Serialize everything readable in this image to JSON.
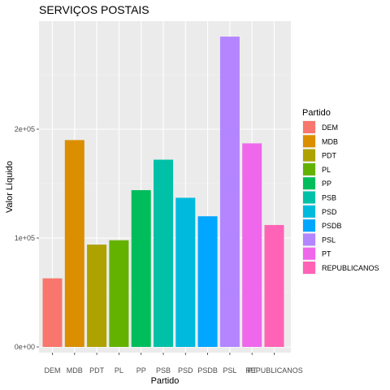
{
  "chart_data": {
    "type": "bar",
    "title": "SERVIÇOS POSTAIS",
    "xlabel": "Partido",
    "ylabel": "Valor Líquido",
    "categories": [
      "DEM",
      "MDB",
      "PDT",
      "PL",
      "PP",
      "PSB",
      "PSD",
      "PSDB",
      "PSL",
      "PT",
      "REPUBLICANOS"
    ],
    "values": [
      63000,
      190000,
      94000,
      98000,
      144000,
      172000,
      137000,
      120000,
      285000,
      187000,
      112000
    ],
    "colors": [
      "#F8766D",
      "#DB8E00",
      "#AEA200",
      "#64B200",
      "#00BD5C",
      "#00C1A7",
      "#00BADE",
      "#00A6FF",
      "#B385FF",
      "#EF67EB",
      "#FF63B6"
    ],
    "ylim": [
      0,
      300000
    ],
    "yticks": [
      0,
      100000,
      200000
    ],
    "ytick_labels": [
      "0e+00",
      "1e+05",
      "2e+05"
    ],
    "grid": true,
    "legend": {
      "title": "Partido",
      "position": "right",
      "entries": [
        "DEM",
        "MDB",
        "PDT",
        "PL",
        "PP",
        "PSB",
        "PSD",
        "PSDB",
        "PSL",
        "PT",
        "REPUBLICANOS"
      ]
    }
  }
}
